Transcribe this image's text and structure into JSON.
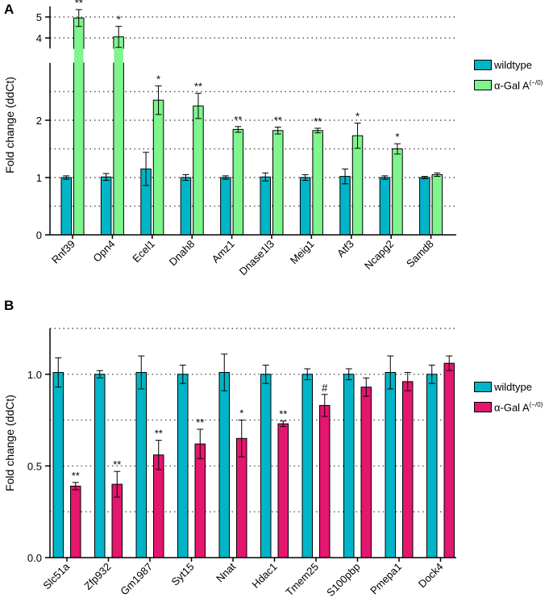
{
  "colors": {
    "wildtype": "#00b5c8",
    "gal_a": "#7ef58d",
    "gal_b": "#e5166e"
  },
  "legend": {
    "wildtype": "wildtype",
    "gal_a_main": "α-Gal A",
    "gal_a_sup": "(−/0)"
  },
  "chart_data": [
    {
      "panel": "A",
      "type": "bar",
      "ylabel": "Fold change (ddCt)",
      "categories": [
        "Rnf39",
        "Opn4",
        "Ecel1",
        "Dnah8",
        "Amz1",
        "Dnase1l3",
        "Meig1",
        "Atf3",
        "Ncapg2",
        "Samd8"
      ],
      "axis_break": {
        "lower_range": [
          0,
          3.0
        ],
        "upper_range": [
          3.5,
          5.5
        ]
      },
      "yticks_lower": [
        "0",
        "1",
        "2"
      ],
      "yticks_upper": [
        "4",
        "5"
      ],
      "gridlines": [
        0.5,
        1,
        1.5,
        2,
        2.5,
        4,
        5
      ],
      "series": [
        {
          "name": "wildtype",
          "values": [
            1.0,
            1.01,
            1.15,
            1.0,
            1.0,
            1.01,
            1.0,
            1.02,
            1.0,
            1.0
          ],
          "errors": [
            0.03,
            0.06,
            0.29,
            0.05,
            0.03,
            0.07,
            0.05,
            0.13,
            0.03,
            0.02
          ],
          "stars": [
            "",
            "",
            "",
            "",
            "",
            "",
            "",
            "",
            "",
            ""
          ]
        },
        {
          "name": "α-Gal A(−/0)",
          "values": [
            4.95,
            4.05,
            2.35,
            2.25,
            1.84,
            1.82,
            1.82,
            1.73,
            1.5,
            1.05
          ],
          "errors": [
            0.4,
            0.5,
            0.25,
            0.22,
            0.05,
            0.06,
            0.04,
            0.22,
            0.09,
            0.03
          ],
          "stars": [
            "**",
            "*",
            "*",
            "**",
            "**",
            "**",
            "**",
            "*",
            "*",
            ""
          ]
        }
      ]
    },
    {
      "panel": "B",
      "type": "bar",
      "ylabel": "Fold change (ddCt)",
      "categories": [
        "Slc51a",
        "Zfp932",
        "Gm1987",
        "Syt15",
        "Nnat",
        "Hdac1",
        "Tmem25",
        "S100pbp",
        "Pmepa1",
        "Dock4"
      ],
      "ylim": [
        0,
        1.25
      ],
      "yticks": [
        "0.0",
        "0.5",
        "1.0"
      ],
      "gridlines": [
        0.25,
        0.5,
        0.75,
        1.0,
        1.25
      ],
      "series": [
        {
          "name": "wildtype",
          "values": [
            1.01,
            1.0,
            1.01,
            1.0,
            1.01,
            1.0,
            1.0,
            1.0,
            1.01,
            1.0
          ],
          "errors": [
            0.08,
            0.02,
            0.09,
            0.05,
            0.1,
            0.05,
            0.03,
            0.03,
            0.09,
            0.05
          ],
          "stars": [
            "",
            "",
            "",
            "",
            "",
            "",
            "",
            "",
            "",
            ""
          ]
        },
        {
          "name": "α-Gal A(−/0)",
          "values": [
            0.39,
            0.4,
            0.56,
            0.62,
            0.65,
            0.73,
            0.83,
            0.93,
            0.96,
            1.06
          ],
          "errors": [
            0.02,
            0.07,
            0.08,
            0.08,
            0.1,
            0.015,
            0.06,
            0.05,
            0.05,
            0.04
          ],
          "stars": [
            "**",
            "**",
            "**",
            "**",
            "*",
            "**",
            "#",
            "",
            "",
            ""
          ]
        }
      ]
    }
  ]
}
